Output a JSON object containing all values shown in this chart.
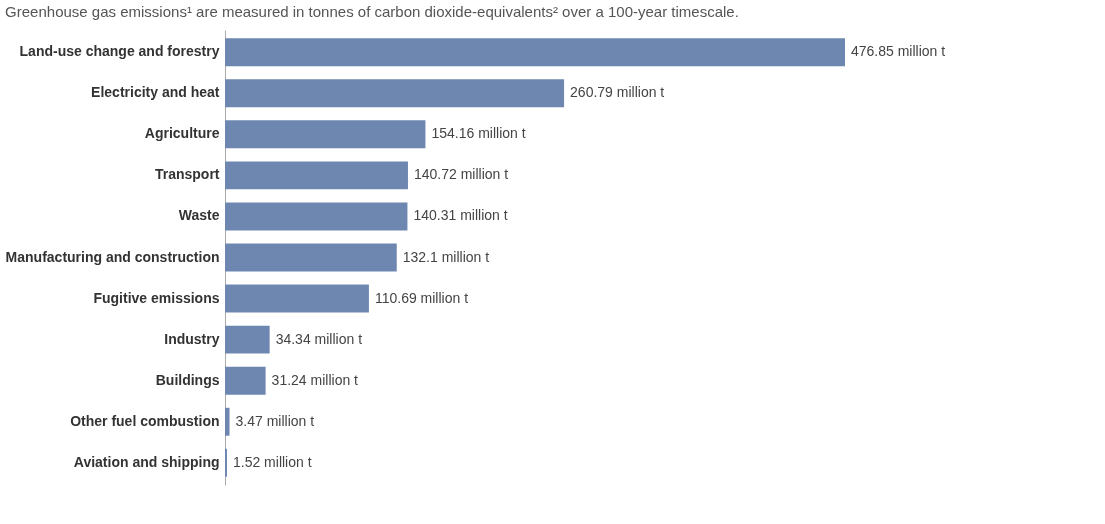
{
  "chart_data": {
    "type": "bar",
    "orientation": "horizontal",
    "title": "Greenhouse gas emissions¹ are measured in tonnes of carbon dioxide-equivalents² over a 100-year timescale.",
    "categories": [
      "Land-use change and forestry",
      "Electricity and heat",
      "Agriculture",
      "Transport",
      "Waste",
      "Manufacturing and construction",
      "Fugitive emissions",
      "Industry",
      "Buildings",
      "Other fuel combustion",
      "Aviation and shipping"
    ],
    "values": [
      476.85,
      260.79,
      154.16,
      140.72,
      140.31,
      132.1,
      110.69,
      34.34,
      31.24,
      3.47,
      1.52
    ],
    "value_labels": [
      "476.85 million t",
      "260.79 million t",
      "154.16 million t",
      "140.72 million t",
      "140.31 million t",
      "132.1 million t",
      "110.69 million t",
      "34.34 million t",
      "31.24 million t",
      "3.47 million t",
      "1.52 million t"
    ],
    "color": "#6e87b1",
    "grid": false
  }
}
